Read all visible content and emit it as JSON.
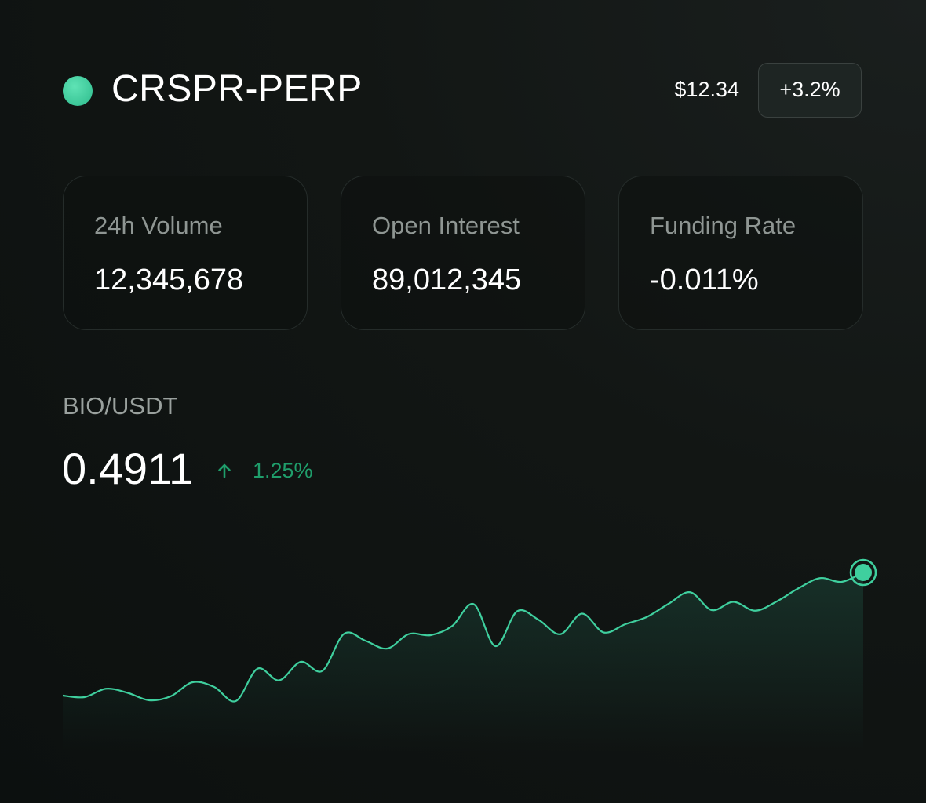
{
  "header": {
    "symbol": "CRSPR-PERP",
    "price": "$12.34",
    "change": "+3.2%",
    "status_color": "#3fcf9e"
  },
  "stats": [
    {
      "label": "24h Volume",
      "value": "12,345,678"
    },
    {
      "label": "Open Interest",
      "value": "89,012,345"
    },
    {
      "label": "Funding Rate",
      "value": "-0.011%"
    }
  ],
  "market": {
    "pair": "BIO/USDT",
    "price": "0.4911",
    "change": "1.25%",
    "change_direction": "up",
    "change_icon": "arrow-up-icon",
    "accent_color": "#1f9e6b"
  },
  "chart_data": {
    "type": "area",
    "title": "",
    "xlabel": "",
    "ylabel": "",
    "line_color": "#3fcf9e",
    "grid": false,
    "values": [
      0.52,
      0.44,
      0.87,
      0.66,
      0.28,
      0.49,
      1.2,
      0.96,
      0.24,
      1.89,
      1.3,
      2.24,
      1.78,
      3.67,
      3.31,
      2.92,
      3.66,
      3.6,
      4.07,
      5.18,
      3.04,
      4.82,
      4.38,
      3.65,
      4.7,
      3.74,
      4.16,
      4.53,
      5.2,
      5.79,
      4.88,
      5.3,
      4.85,
      5.32,
      5.99,
      6.51,
      6.32,
      6.8
    ],
    "ylim": [
      0,
      8
    ]
  }
}
